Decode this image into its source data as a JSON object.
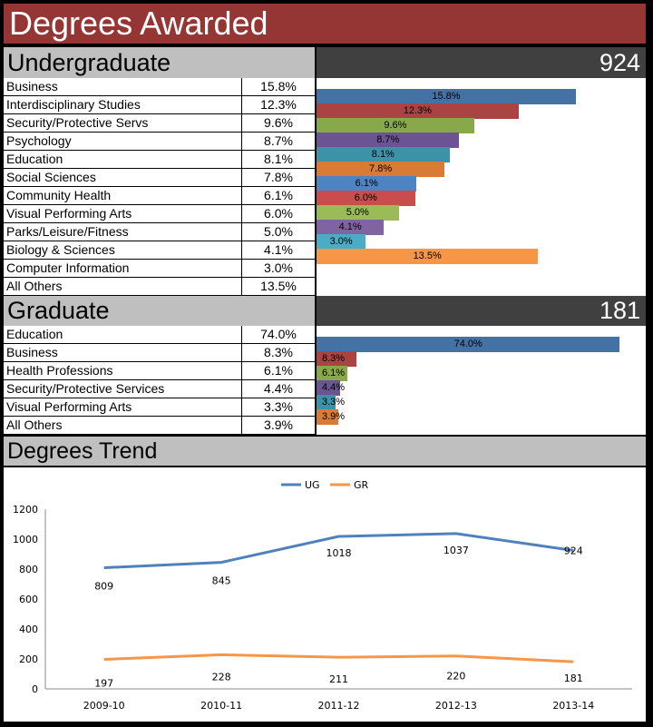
{
  "title": "Degrees Awarded",
  "undergraduate": {
    "label": "Undergraduate",
    "total": "924",
    "rows": [
      {
        "name": "Business",
        "pct": "15.8%",
        "value": 15.8,
        "color": "#4472a4"
      },
      {
        "name": "Interdisciplinary Studies",
        "pct": "12.3%",
        "value": 12.3,
        "color": "#a94442"
      },
      {
        "name": "Security/Protective Servs",
        "pct": "9.6%",
        "value": 9.6,
        "color": "#88a94a"
      },
      {
        "name": "Psychology",
        "pct": "8.7%",
        "value": 8.7,
        "color": "#6c5394"
      },
      {
        "name": "Education",
        "pct": "8.1%",
        "value": 8.1,
        "color": "#3c93a8"
      },
      {
        "name": "Social Sciences",
        "pct": "7.8%",
        "value": 7.8,
        "color": "#d97b34"
      },
      {
        "name": "Community Health",
        "pct": "6.1%",
        "value": 6.1,
        "color": "#4d84c4"
      },
      {
        "name": "Visual Performing Arts",
        "pct": "6.0%",
        "value": 6.0,
        "color": "#c84d4b"
      },
      {
        "name": "Parks/Leisure/Fitness",
        "pct": "5.0%",
        "value": 5.0,
        "color": "#9bbb59"
      },
      {
        "name": "Biology & Sciences",
        "pct": "4.1%",
        "value": 4.1,
        "color": "#8064a2"
      },
      {
        "name": "Computer Information",
        "pct": "3.0%",
        "value": 3.0,
        "color": "#4bacc6"
      },
      {
        "name": "All Others",
        "pct": "13.5%",
        "value": 13.5,
        "color": "#f79646"
      }
    ]
  },
  "graduate": {
    "label": "Graduate",
    "total": "181",
    "rows": [
      {
        "name": "Education",
        "pct": "74.0%",
        "value": 74.0,
        "color": "#4472a4"
      },
      {
        "name": "Business",
        "pct": "8.3%",
        "value": 8.3,
        "color": "#a94442"
      },
      {
        "name": "Health Professions",
        "pct": "6.1%",
        "value": 6.1,
        "color": "#88a94a"
      },
      {
        "name": "Security/Protective Services",
        "pct": "4.4%",
        "value": 4.4,
        "color": "#6c5394"
      },
      {
        "name": "Visual Performing Arts",
        "pct": "3.3%",
        "value": 3.3,
        "color": "#3c93a8"
      },
      {
        "name": "All Others",
        "pct": "3.9%",
        "value": 3.9,
        "color": "#d97b34"
      }
    ]
  },
  "trend": {
    "label": "Degrees Trend"
  },
  "chart_data": {
    "type": "line",
    "categories": [
      "2009-10",
      "2010-11",
      "2011-12",
      "2012-13",
      "2013-14"
    ],
    "series": [
      {
        "name": "UG",
        "values": [
          809,
          845,
          1018,
          1037,
          924
        ],
        "color": "#4f81bd"
      },
      {
        "name": "GR",
        "values": [
          197,
          228,
          211,
          220,
          181
        ],
        "color": "#f79646"
      }
    ],
    "ylim": [
      0,
      1200
    ],
    "yticks": [
      0,
      200,
      400,
      600,
      800,
      1000,
      1200
    ],
    "legend": "top",
    "grid": false
  }
}
